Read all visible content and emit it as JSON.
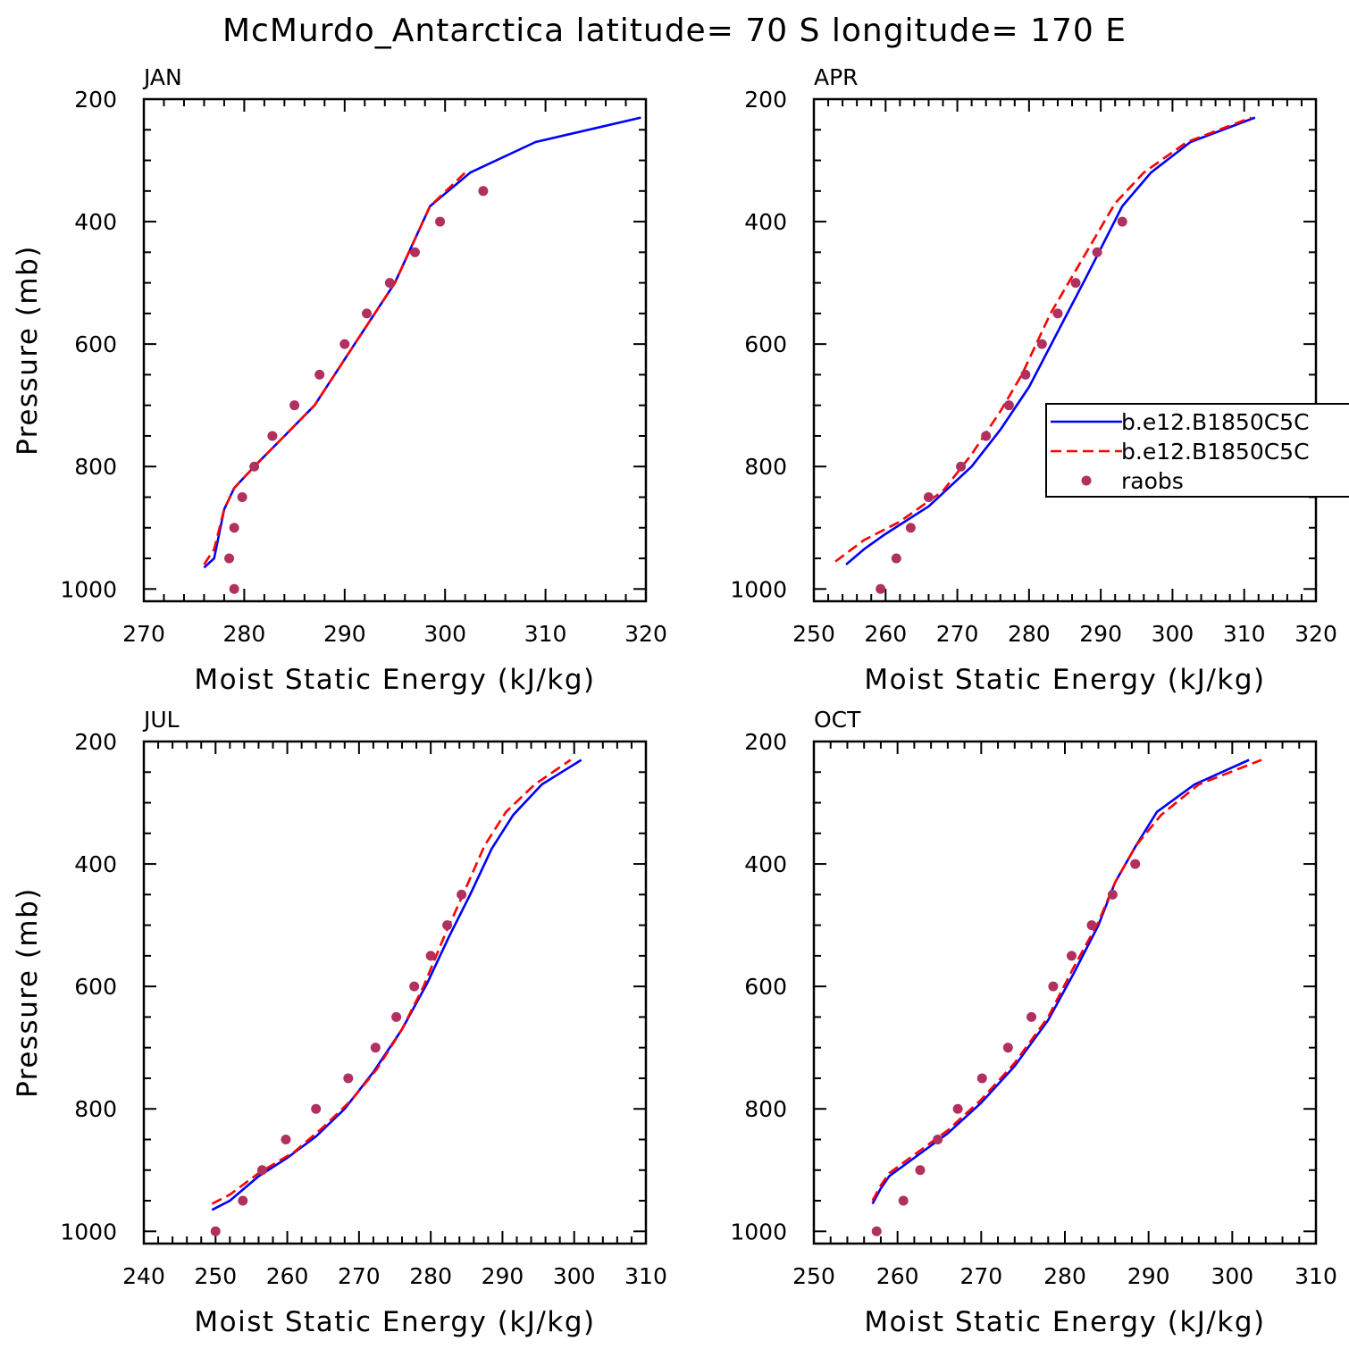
{
  "figure": {
    "title": "McMurdo_Antarctica  latitude= 70 S longitude= 170 E",
    "colors": {
      "model1": "#0000ff",
      "model2": "#ff0000",
      "obs": "#b03060",
      "axis": "#000000"
    }
  },
  "legend": {
    "panel": 1,
    "entries": [
      {
        "label": "b.e12.B1850C5C",
        "style": "solid-line",
        "color": "#0000ff"
      },
      {
        "label": "b.e12.B1850C5C",
        "style": "dashed-line",
        "color": "#ff0000"
      },
      {
        "label": "raobs",
        "style": "marker",
        "color": "#b03060"
      }
    ]
  },
  "chart_data": [
    {
      "type": "line",
      "panel_label": "JAN",
      "xlabel": "Moist Static Energy (kJ/kg)",
      "ylabel": "Pressure (mb)",
      "xlim": [
        270,
        320
      ],
      "ylim": [
        1020,
        200
      ],
      "xticks": [
        270,
        280,
        290,
        300,
        310,
        320
      ],
      "yticks": [
        200,
        400,
        600,
        800,
        1000
      ],
      "series": [
        {
          "style": "solid",
          "color": "#0000ff",
          "x": [
            276,
            277,
            278,
            279,
            281,
            284,
            287,
            291,
            295,
            298.5,
            302.5,
            309,
            319.5
          ],
          "y": [
            965,
            950,
            870,
            835,
            800,
            750,
            700,
            600,
            500,
            375,
            320,
            270,
            230
          ]
        },
        {
          "style": "dashed",
          "color": "#ff0000",
          "x": [
            276,
            277,
            278,
            279,
            281,
            284,
            287,
            291,
            295,
            298.5,
            302
          ],
          "y": [
            960,
            935,
            870,
            835,
            800,
            750,
            700,
            600,
            500,
            375,
            320
          ]
        },
        {
          "style": "markers",
          "color": "#b03060",
          "x": [
            279,
            278.5,
            279,
            279.8,
            281,
            282.8,
            285,
            287.5,
            290,
            292.2,
            294.5,
            297,
            299.5,
            303.8
          ],
          "y": [
            1000,
            950,
            900,
            850,
            800,
            750,
            700,
            650,
            600,
            550,
            500,
            450,
            400,
            350
          ]
        }
      ]
    },
    {
      "type": "line",
      "panel_label": "APR",
      "xlabel": "Moist Static Energy (kJ/kg)",
      "ylabel": "",
      "xlim": [
        250,
        320
      ],
      "ylim": [
        1020,
        200
      ],
      "xticks": [
        250,
        260,
        270,
        280,
        290,
        300,
        310,
        320
      ],
      "yticks": [
        200,
        400,
        600,
        800,
        1000
      ],
      "series": [
        {
          "style": "solid",
          "color": "#0000ff",
          "x": [
            254.5,
            257,
            260,
            266,
            272,
            276,
            280,
            284,
            288,
            293,
            297,
            302.5,
            311.5
          ],
          "y": [
            960,
            935,
            910,
            865,
            800,
            740,
            670,
            580,
            490,
            375,
            320,
            270,
            230
          ]
        },
        {
          "style": "dashed",
          "color": "#ff0000",
          "x": [
            253,
            257,
            262,
            268,
            272,
            276,
            279,
            283,
            288,
            292,
            296,
            302,
            311
          ],
          "y": [
            955,
            920,
            890,
            840,
            780,
            710,
            650,
            550,
            450,
            370,
            320,
            270,
            230
          ]
        },
        {
          "style": "markers",
          "color": "#b03060",
          "x": [
            259.3,
            261.5,
            263.5,
            266,
            270.5,
            274,
            277.2,
            279.5,
            281.8,
            284,
            286.5,
            289.5,
            293
          ],
          "y": [
            1000,
            950,
            900,
            850,
            800,
            750,
            700,
            650,
            600,
            550,
            500,
            450,
            400
          ]
        }
      ]
    },
    {
      "type": "line",
      "panel_label": "JUL",
      "xlabel": "Moist Static Energy (kJ/kg)",
      "ylabel": "Pressure (mb)",
      "xlim": [
        240,
        310
      ],
      "ylim": [
        1020,
        200
      ],
      "xticks": [
        240,
        250,
        260,
        270,
        280,
        290,
        300,
        310
      ],
      "yticks": [
        200,
        400,
        600,
        800,
        1000
      ],
      "series": [
        {
          "style": "solid",
          "color": "#0000ff",
          "x": [
            249.5,
            252,
            256,
            260,
            264,
            268,
            272,
            276,
            279.5,
            282.5,
            285.5,
            288.5,
            291.5,
            295.5,
            301
          ],
          "y": [
            965,
            950,
            910,
            880,
            845,
            800,
            740,
            670,
            595,
            520,
            450,
            375,
            320,
            270,
            230
          ]
        },
        {
          "style": "dashed",
          "color": "#ff0000",
          "x": [
            249.5,
            252,
            256,
            261,
            265,
            269,
            272.5,
            276,
            279,
            282,
            284.5,
            287.5,
            290.5,
            294.5,
            299.5
          ],
          "y": [
            955,
            940,
            905,
            870,
            830,
            785,
            735,
            670,
            600,
            515,
            450,
            370,
            315,
            270,
            230
          ]
        },
        {
          "style": "markers",
          "color": "#b03060",
          "x": [
            250,
            253.8,
            256.5,
            259.8,
            264,
            268.5,
            272.3,
            275.2,
            277.7,
            280,
            282.3,
            284.3
          ],
          "y": [
            1000,
            950,
            900,
            850,
            800,
            750,
            700,
            650,
            600,
            550,
            500,
            450
          ]
        }
      ]
    },
    {
      "type": "line",
      "panel_label": "OCT",
      "xlabel": "Moist Static Energy (kJ/kg)",
      "ylabel": "",
      "xlim": [
        250,
        310
      ],
      "ylim": [
        1020,
        200
      ],
      "xticks": [
        250,
        260,
        270,
        280,
        290,
        300,
        310
      ],
      "yticks": [
        200,
        400,
        600,
        800,
        1000
      ],
      "series": [
        {
          "style": "solid",
          "color": "#0000ff",
          "x": [
            257,
            258,
            259,
            262,
            266,
            270,
            274,
            278,
            281,
            284,
            286,
            288.5,
            291,
            295.5,
            302
          ],
          "y": [
            955,
            930,
            910,
            880,
            840,
            790,
            730,
            655,
            580,
            500,
            430,
            370,
            315,
            270,
            230
          ]
        },
        {
          "style": "dashed",
          "color": "#ff0000",
          "x": [
            257,
            258,
            259,
            262,
            266,
            270,
            274,
            278,
            281,
            284,
            286,
            288.5,
            291.5,
            296,
            303.5
          ],
          "y": [
            950,
            925,
            905,
            875,
            835,
            785,
            725,
            650,
            570,
            495,
            430,
            370,
            320,
            270,
            230
          ]
        },
        {
          "style": "markers",
          "color": "#b03060",
          "x": [
            257.5,
            260.7,
            262.7,
            264.8,
            267.2,
            270.1,
            273.2,
            276,
            278.6,
            280.8,
            283.2,
            285.7,
            288.4
          ],
          "y": [
            1000,
            950,
            900,
            850,
            800,
            750,
            700,
            650,
            600,
            550,
            500,
            450,
            400
          ]
        }
      ]
    }
  ]
}
